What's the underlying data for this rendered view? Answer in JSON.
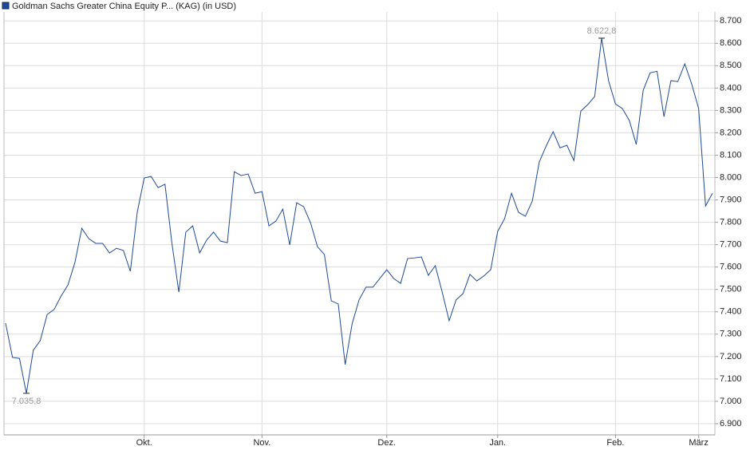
{
  "chart_data": {
    "type": "line",
    "series": [
      {
        "name": "Goldman Sachs Greater China Equity P... (KAG) (in USD)",
        "color": "#1f4a96",
        "values": [
          7349,
          7196,
          7192,
          7035.8,
          7228,
          7271,
          7388,
          7410,
          7470,
          7520,
          7620,
          7773,
          7727,
          7706,
          7706,
          7663,
          7684,
          7674,
          7581,
          7845,
          7998,
          8005,
          7955,
          7970,
          7706,
          7488,
          7756,
          7784,
          7663,
          7720,
          7756,
          7716,
          7709,
          8026,
          8009,
          8016,
          7930,
          7937,
          7784,
          7805,
          7859,
          7699,
          7887,
          7870,
          7798,
          7691,
          7656,
          7449,
          7435,
          7164,
          7346,
          7453,
          7510,
          7510,
          7549,
          7588,
          7549,
          7527,
          7638,
          7641,
          7645,
          7563,
          7606,
          7488,
          7360,
          7453,
          7481,
          7567,
          7538,
          7560,
          7588,
          7759,
          7816,
          7930,
          7845,
          7827,
          7895,
          8069,
          8141,
          8205,
          8133,
          8144,
          8076,
          8297,
          8326,
          8362,
          8622.8,
          8433,
          8329,
          8308,
          8255,
          8148,
          8390,
          8468,
          8475,
          8272,
          8433,
          8429,
          8508,
          8418,
          8308,
          7873,
          7930
        ]
      }
    ],
    "categories": [
      null,
      null,
      null,
      null,
      null,
      null,
      null,
      null,
      null,
      null,
      null,
      null,
      null,
      null,
      null,
      null,
      null,
      null,
      null,
      null,
      "Okt.",
      null,
      null,
      null,
      null,
      null,
      null,
      null,
      null,
      null,
      null,
      null,
      null,
      null,
      null,
      null,
      null,
      "Nov.",
      null,
      null,
      null,
      null,
      null,
      null,
      null,
      null,
      null,
      null,
      null,
      null,
      null,
      null,
      null,
      null,
      null,
      "Dez.",
      null,
      null,
      null,
      null,
      null,
      null,
      null,
      null,
      null,
      null,
      null,
      null,
      null,
      null,
      null,
      "Jan.",
      null,
      null,
      null,
      null,
      null,
      null,
      null,
      null,
      null,
      null,
      null,
      null,
      null,
      null,
      null,
      null,
      "Feb.",
      null,
      null,
      null,
      null,
      null,
      null,
      null,
      null,
      null,
      null,
      null,
      "März",
      null,
      null
    ],
    "ylim": [
      6850,
      8740
    ],
    "yticks": [
      {
        "value": 6900,
        "label": "6.900"
      },
      {
        "value": 7000,
        "label": "7.000"
      },
      {
        "value": 7100,
        "label": "7.100"
      },
      {
        "value": 7200,
        "label": "7.200"
      },
      {
        "value": 7300,
        "label": "7.300"
      },
      {
        "value": 7400,
        "label": "7.400"
      },
      {
        "value": 7500,
        "label": "7.500"
      },
      {
        "value": 7600,
        "label": "7.600"
      },
      {
        "value": 7700,
        "label": "7.700"
      },
      {
        "value": 7800,
        "label": "7.800"
      },
      {
        "value": 7900,
        "label": "7.900"
      },
      {
        "value": 8000,
        "label": "8.000"
      },
      {
        "value": 8100,
        "label": "8.100"
      },
      {
        "value": 8200,
        "label": "8.200"
      },
      {
        "value": 8300,
        "label": "8.300"
      },
      {
        "value": 8400,
        "label": "8.400"
      },
      {
        "value": 8500,
        "label": "8.500"
      },
      {
        "value": 8600,
        "label": "8.600"
      },
      {
        "value": 8700,
        "label": "8.700"
      }
    ],
    "annotations": [
      {
        "value": 8622.8,
        "label": "8.622,8"
      },
      {
        "value": 7035.8,
        "label": "7.035,8"
      }
    ],
    "grid": true
  }
}
